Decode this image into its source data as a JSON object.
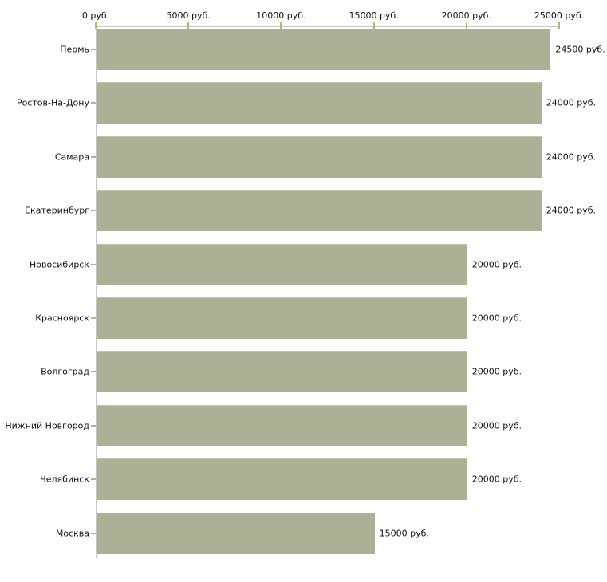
{
  "chart_data": {
    "type": "bar",
    "orientation": "horizontal",
    "title": "",
    "xlabel": "",
    "ylabel": "",
    "unit": "руб.",
    "categories": [
      "Пермь",
      "Ростов-На-Дону",
      "Самара",
      "Екатеринбург",
      "Новосибирск",
      "Красноярск",
      "Волгоград",
      "Нижний Новгород",
      "Челябинск",
      "Москва"
    ],
    "values": [
      24500,
      24000,
      24000,
      24000,
      20000,
      20000,
      20000,
      20000,
      20000,
      15000
    ],
    "bar_labels": [
      "24500 руб.",
      "24000 руб.",
      "24000 руб.",
      "24000 руб.",
      "20000 руб.",
      "20000 руб.",
      "20000 руб.",
      "20000 руб.",
      "20000 руб.",
      "15000 руб."
    ],
    "x_axis": {
      "position": "top",
      "xlim": [
        0,
        25000
      ],
      "tick_values": [
        0,
        5000,
        10000,
        15000,
        20000,
        25000
      ],
      "tick_labels": [
        "0 руб.",
        "5000 руб.",
        "10000 руб.",
        "15000 руб.",
        "20000 руб.",
        "25000 руб."
      ]
    },
    "grid": "off",
    "legend": "none",
    "colors": {
      "bar_fill": "#acb196",
      "axis_line": "#c6c6c6",
      "tick_mark": "#b5b584",
      "text": "#111111",
      "background": "#ffffff"
    }
  }
}
